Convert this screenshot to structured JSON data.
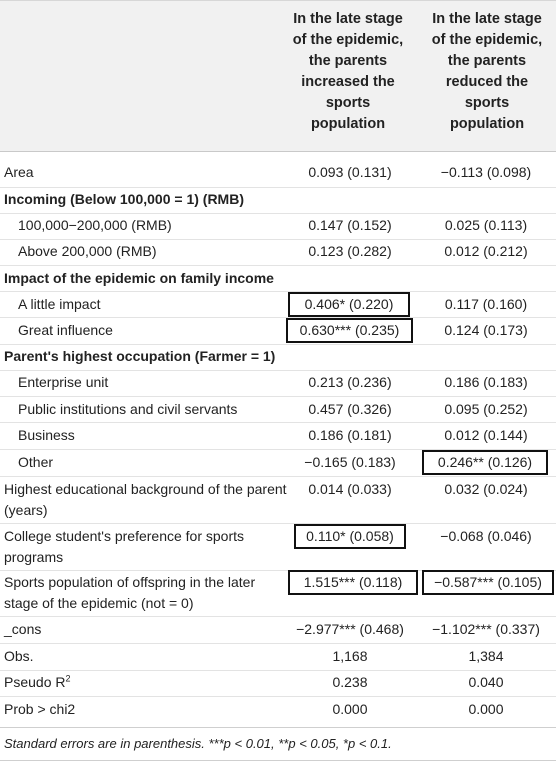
{
  "header": {
    "col1": "In the late stage\nof the epidemic,\nthe parents\nincreased the\nsports\npopulation",
    "col2": "In the late stage\nof the epidemic,\nthe parents\nreduced the\nsports\npopulation"
  },
  "rows": [
    {
      "label": "Area",
      "v1": "0.093 (0.131)",
      "v2": "−0.113 (0.098)"
    },
    {
      "label": "Incoming (Below 100,000 = 1) (RMB)"
    },
    {
      "label": "100,000−200,000 (RMB)",
      "v1": "0.147 (0.152)",
      "v2": "0.025 (0.113)"
    },
    {
      "label": "Above 200,000 (RMB)",
      "v1": "0.123 (0.282)",
      "v2": "0.012 (0.212)"
    },
    {
      "label": "Impact of the epidemic on family income"
    },
    {
      "label": "A little impact",
      "v1": "0.406* (0.220)",
      "v2": "0.117 (0.160)"
    },
    {
      "label": "Great influence",
      "v1": "0.630*** (0.235)",
      "v2": "0.124 (0.173)"
    },
    {
      "label": "Parent's highest occupation (Farmer = 1)"
    },
    {
      "label": "Enterprise unit",
      "v1": "0.213 (0.236)",
      "v2": "0.186 (0.183)"
    },
    {
      "label": "Public institutions and civil servants",
      "v1": "0.457 (0.326)",
      "v2": "0.095 (0.252)"
    },
    {
      "label": "Business",
      "v1": "0.186 (0.181)",
      "v2": "0.012 (0.144)"
    },
    {
      "label": "Other",
      "v1": "−0.165 (0.183)",
      "v2": "0.246** (0.126)"
    },
    {
      "label": "Highest educational background of the parent (years)",
      "v1": "0.014 (0.033)",
      "v2": "0.032 (0.024)"
    },
    {
      "label": "College student's preference for sports programs",
      "v1": "0.110* (0.058)",
      "v2": "−0.068 (0.046)"
    },
    {
      "label": "Sports population of offspring in the later stage of the epidemic (not = 0)",
      "v1": "1.515*** (0.118)",
      "v2": "−0.587*** (0.105)"
    },
    {
      "label": "_cons",
      "v1": "−2.977*** (0.468)",
      "v2": "−1.102*** (0.337)"
    },
    {
      "label": "Obs.",
      "v1": "1,168",
      "v2": "1,384"
    },
    {
      "label": "Pseudo R",
      "label_sup": "2",
      "v1": "0.238",
      "v2": "0.040"
    },
    {
      "label": "Prob > chi2",
      "v1": "0.000",
      "v2": "0.000"
    }
  ],
  "footnote": "Standard errors are in parenthesis. ***p < 0.01, **p < 0.05, *p < 0.1."
}
